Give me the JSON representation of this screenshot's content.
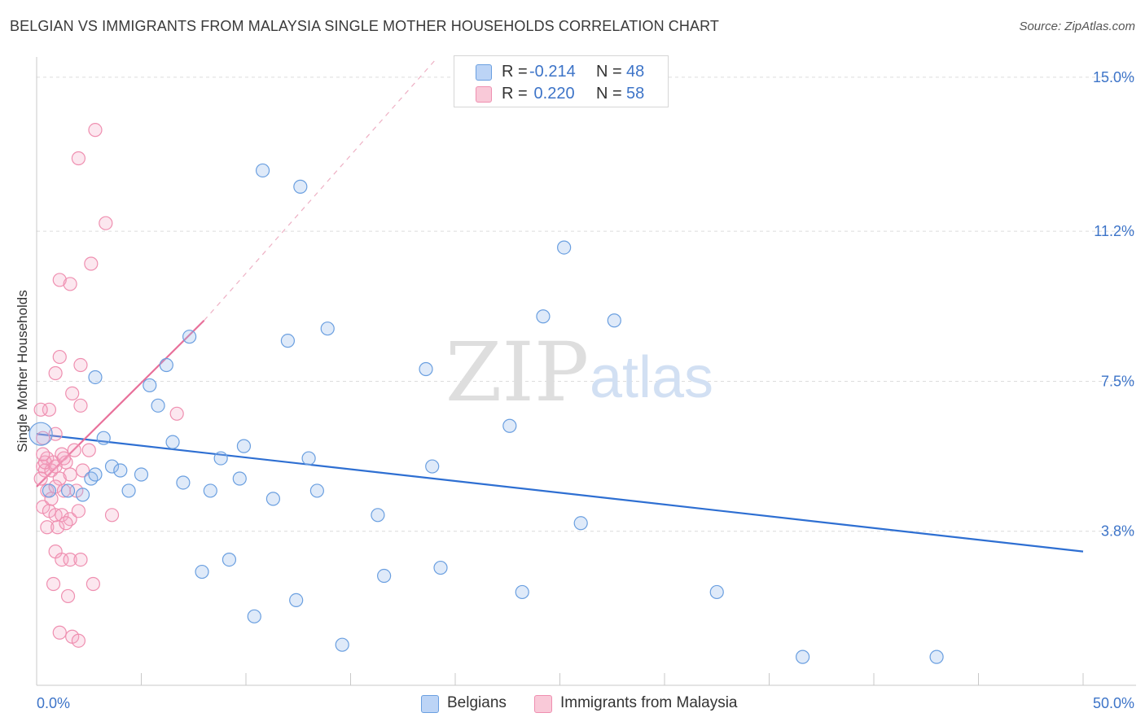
{
  "title": "BELGIAN VS IMMIGRANTS FROM MALAYSIA SINGLE MOTHER HOUSEHOLDS CORRELATION CHART",
  "source": "Source: ZipAtlas.com",
  "watermark": {
    "zip": "ZIP",
    "atlas": "atlas"
  },
  "legend": {
    "rows": [
      {
        "r_label": "R =",
        "r_value": "-0.214",
        "n_label": "N =",
        "n_value": "48"
      },
      {
        "r_label": "R =",
        "r_value": " 0.220",
        "n_label": "N =",
        "n_value": "58"
      }
    ]
  },
  "bottom_legend": {
    "belgians": "Belgians",
    "malaysia": "Immigrants from Malaysia"
  },
  "chart_data": {
    "type": "scatter",
    "title": "BELGIAN VS IMMIGRANTS FROM MALAYSIA SINGLE MOTHER HOUSEHOLDS CORRELATION CHART",
    "xlabel": "",
    "ylabel": "Single Mother Households",
    "xlim": [
      0,
      50
    ],
    "ylim": [
      0,
      15.5
    ],
    "x_tick_labels": [
      "0.0%",
      "50.0%"
    ],
    "y_ticks": [
      {
        "value": 3.8,
        "label": "3.8%"
      },
      {
        "value": 7.5,
        "label": "7.5%"
      },
      {
        "value": 11.2,
        "label": "11.2%"
      },
      {
        "value": 15.0,
        "label": "15.0%"
      }
    ],
    "colors": {
      "belgians": "#6a9fe0",
      "malaysia": "#ef8fb0",
      "belgians_line": "#2e6fd2",
      "malaysia_line": "#e8709a"
    },
    "series": [
      {
        "name": "Belgians",
        "points": [
          [
            0.2,
            6.2
          ],
          [
            1.5,
            4.8
          ],
          [
            2.2,
            4.7
          ],
          [
            2.6,
            5.1
          ],
          [
            2.8,
            5.2
          ],
          [
            2.8,
            7.6
          ],
          [
            3.2,
            6.1
          ],
          [
            3.6,
            5.4
          ],
          [
            4.0,
            5.3
          ],
          [
            4.4,
            4.8
          ],
          [
            5.0,
            5.2
          ],
          [
            5.4,
            7.4
          ],
          [
            5.8,
            6.9
          ],
          [
            6.2,
            7.9
          ],
          [
            6.5,
            6.0
          ],
          [
            7.0,
            5.0
          ],
          [
            7.3,
            8.6
          ],
          [
            7.9,
            2.8
          ],
          [
            8.3,
            4.8
          ],
          [
            8.8,
            5.6
          ],
          [
            9.2,
            3.1
          ],
          [
            9.7,
            5.1
          ],
          [
            9.9,
            5.9
          ],
          [
            10.4,
            1.7
          ],
          [
            10.8,
            12.7
          ],
          [
            11.3,
            4.6
          ],
          [
            12.0,
            8.5
          ],
          [
            12.4,
            2.1
          ],
          [
            12.6,
            12.3
          ],
          [
            13.0,
            5.6
          ],
          [
            13.4,
            4.8
          ],
          [
            13.9,
            8.8
          ],
          [
            14.6,
            1.0
          ],
          [
            16.3,
            4.2
          ],
          [
            16.6,
            2.7
          ],
          [
            18.6,
            7.8
          ],
          [
            18.9,
            5.4
          ],
          [
            19.3,
            2.9
          ],
          [
            22.6,
            6.4
          ],
          [
            23.2,
            2.3
          ],
          [
            24.2,
            9.1
          ],
          [
            25.2,
            10.8
          ],
          [
            26.0,
            4.0
          ],
          [
            27.6,
            9.0
          ],
          [
            32.5,
            2.3
          ],
          [
            36.6,
            0.7
          ],
          [
            43.0,
            0.7
          ],
          [
            0.6,
            4.8
          ]
        ]
      },
      {
        "name": "Immigrants from Malaysia",
        "points": [
          [
            2.8,
            13.7
          ],
          [
            2.0,
            13.0
          ],
          [
            3.3,
            11.4
          ],
          [
            2.6,
            10.4
          ],
          [
            1.1,
            10.0
          ],
          [
            1.6,
            9.9
          ],
          [
            1.1,
            8.1
          ],
          [
            2.1,
            7.9
          ],
          [
            0.9,
            7.7
          ],
          [
            1.7,
            7.2
          ],
          [
            2.1,
            6.9
          ],
          [
            6.7,
            6.7
          ],
          [
            0.6,
            6.8
          ],
          [
            0.2,
            6.8
          ],
          [
            0.9,
            6.2
          ],
          [
            0.3,
            6.1
          ],
          [
            0.5,
            5.6
          ],
          [
            0.8,
            5.5
          ],
          [
            1.2,
            5.7
          ],
          [
            1.4,
            5.5
          ],
          [
            0.3,
            5.4
          ],
          [
            0.4,
            5.3
          ],
          [
            0.7,
            5.3
          ],
          [
            1.1,
            5.1
          ],
          [
            1.6,
            5.2
          ],
          [
            2.2,
            5.3
          ],
          [
            0.5,
            4.8
          ],
          [
            0.9,
            4.9
          ],
          [
            1.3,
            4.8
          ],
          [
            1.9,
            4.8
          ],
          [
            0.3,
            4.4
          ],
          [
            0.6,
            4.3
          ],
          [
            0.9,
            4.2
          ],
          [
            1.2,
            4.2
          ],
          [
            1.6,
            4.1
          ],
          [
            2.0,
            4.3
          ],
          [
            0.5,
            3.9
          ],
          [
            1.0,
            3.9
          ],
          [
            1.4,
            4.0
          ],
          [
            0.9,
            3.3
          ],
          [
            1.2,
            3.1
          ],
          [
            1.6,
            3.1
          ],
          [
            2.1,
            3.1
          ],
          [
            0.8,
            2.5
          ],
          [
            2.7,
            2.5
          ],
          [
            1.5,
            2.2
          ],
          [
            1.1,
            1.3
          ],
          [
            1.7,
            1.2
          ],
          [
            2.0,
            1.1
          ],
          [
            0.4,
            5.5
          ],
          [
            2.5,
            5.8
          ],
          [
            0.7,
            4.6
          ],
          [
            1.8,
            5.8
          ],
          [
            0.2,
            5.1
          ],
          [
            0.9,
            5.4
          ],
          [
            3.6,
            4.2
          ],
          [
            0.3,
            5.7
          ],
          [
            1.3,
            5.6
          ]
        ]
      }
    ],
    "trendlines": [
      {
        "name": "Belgians",
        "x": [
          0,
          50
        ],
        "y": [
          6.2,
          3.3
        ]
      },
      {
        "name": "Immigrants from Malaysia",
        "x": [
          0,
          8
        ],
        "y": [
          4.9,
          9.0
        ],
        "extended_to": [
          19.0,
          15.4
        ]
      }
    ]
  }
}
